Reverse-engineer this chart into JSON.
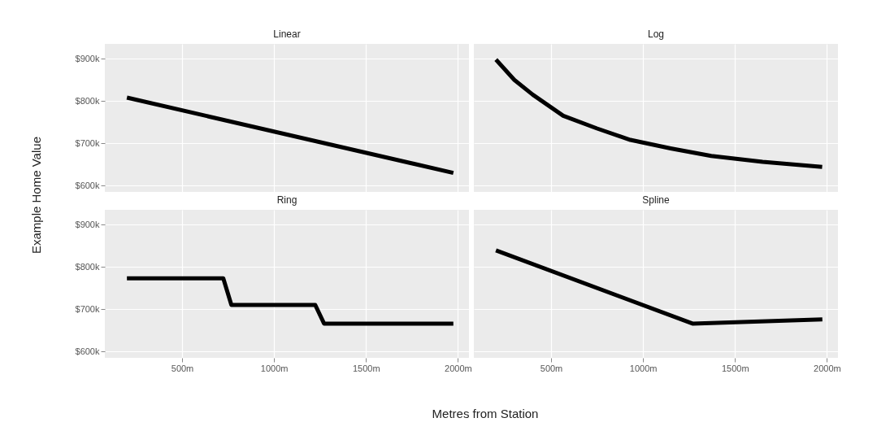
{
  "chart_data": [
    {
      "type": "line",
      "title": "Linear",
      "ylabel": "Example Home Value",
      "x": [
        200,
        1975
      ],
      "values": [
        808,
        630
      ],
      "color": "#000000",
      "xlim": [
        80,
        2060
      ],
      "ylim": [
        585,
        935
      ],
      "xticks": [
        {
          "value": 500,
          "label": null
        },
        {
          "value": 1000,
          "label": null
        },
        {
          "value": 1500,
          "label": null
        },
        {
          "value": 2000,
          "label": null
        }
      ],
      "yticks": [
        {
          "value": 600,
          "label": "$600k"
        },
        {
          "value": 700,
          "label": "$700k"
        },
        {
          "value": 800,
          "label": "$800k"
        },
        {
          "value": 900,
          "label": "$900k"
        }
      ],
      "grid": true,
      "tick_labels": "y"
    },
    {
      "type": "line",
      "title": "Log",
      "x": [
        200,
        300,
        400,
        566,
        750,
        931,
        1150,
        1371,
        1650,
        1974
      ],
      "values": [
        898,
        850,
        815,
        765,
        735,
        708,
        688,
        670,
        656,
        644
      ],
      "color": "#000000",
      "xlim": [
        80,
        2060
      ],
      "ylim": [
        585,
        935
      ],
      "xticks": [
        {
          "value": 500,
          "label": null
        },
        {
          "value": 1000,
          "label": null
        },
        {
          "value": 1500,
          "label": null
        },
        {
          "value": 2000,
          "label": null
        }
      ],
      "yticks": [
        {
          "value": 600,
          "label": null
        },
        {
          "value": 700,
          "label": null
        },
        {
          "value": 800,
          "label": null
        },
        {
          "value": 900,
          "label": null
        }
      ],
      "grid": true,
      "tick_labels": false
    },
    {
      "type": "line",
      "title": "Ring",
      "xlabel": "Metres from Station",
      "x": [
        200,
        724,
        768,
        1224,
        1272,
        1975
      ],
      "values": [
        773,
        773,
        710,
        710,
        666,
        666
      ],
      "color": "#000000",
      "xlim": [
        80,
        2060
      ],
      "ylim": [
        585,
        935
      ],
      "xticks": [
        {
          "value": 500,
          "label": "500m"
        },
        {
          "value": 1000,
          "label": "1000m"
        },
        {
          "value": 1500,
          "label": "1500m"
        },
        {
          "value": 2000,
          "label": "2000m"
        }
      ],
      "yticks": [
        {
          "value": 600,
          "label": "$600k"
        },
        {
          "value": 700,
          "label": "$700k"
        },
        {
          "value": 800,
          "label": "$800k"
        },
        {
          "value": 900,
          "label": "$900k"
        }
      ],
      "grid": true
    },
    {
      "type": "line",
      "title": "Spline",
      "x": [
        200,
        1269,
        1975
      ],
      "values": [
        839,
        666,
        676
      ],
      "color": "#000000",
      "xlim": [
        80,
        2060
      ],
      "ylim": [
        585,
        935
      ],
      "xticks": [
        {
          "value": 500,
          "label": "500m"
        },
        {
          "value": 1000,
          "label": "1000m"
        },
        {
          "value": 1500,
          "label": "1500m"
        },
        {
          "value": 2000,
          "label": "2000m"
        }
      ],
      "yticks": [
        {
          "value": 600,
          "label": null
        },
        {
          "value": 700,
          "label": null
        },
        {
          "value": 800,
          "label": null
        },
        {
          "value": 900,
          "label": null
        }
      ],
      "grid": true,
      "tick_labels": "x"
    }
  ]
}
